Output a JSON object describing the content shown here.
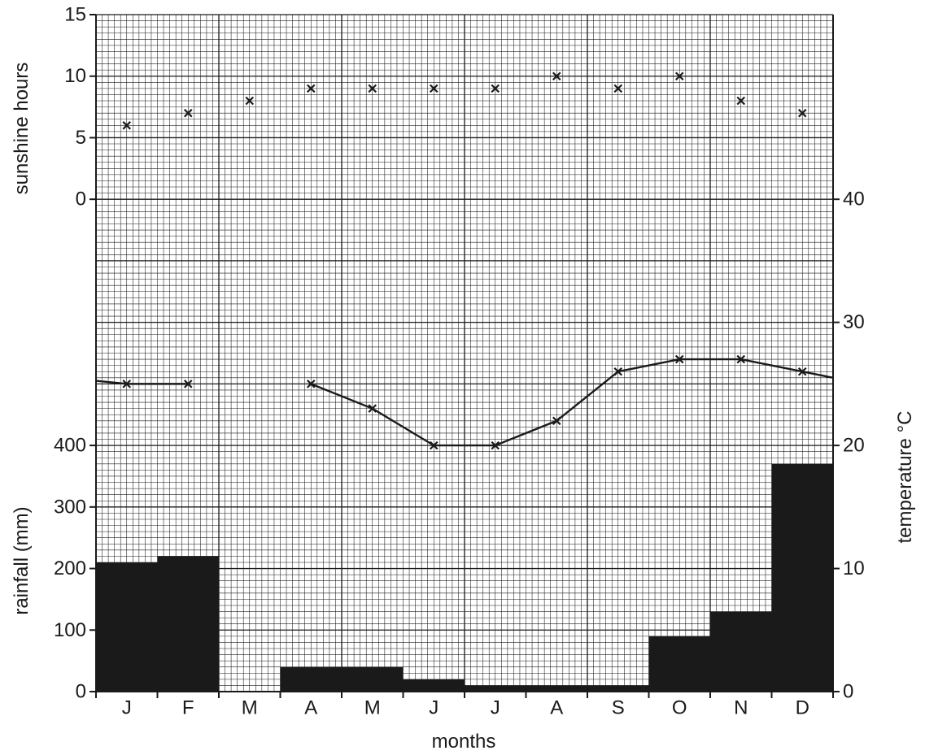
{
  "chart_data": {
    "type": "combo",
    "xlabel": "months",
    "categories": [
      "J",
      "F",
      "M",
      "A",
      "M",
      "J",
      "J",
      "A",
      "S",
      "O",
      "N",
      "D"
    ],
    "sunshine": {
      "ylabel": "sunshine hours",
      "ylim": [
        0,
        15
      ],
      "ticks": [
        "0",
        "5",
        "10",
        "15"
      ],
      "values": [
        6,
        7,
        8,
        9,
        9,
        9,
        9,
        10,
        9,
        10,
        8,
        7
      ]
    },
    "temperature": {
      "ylabel": "temperature °C",
      "ylim": [
        0,
        40
      ],
      "ticks": [
        "0",
        "10",
        "20",
        "30",
        "40"
      ],
      "values": [
        25,
        25,
        null,
        25,
        23,
        20,
        20,
        22,
        26,
        27,
        27,
        26
      ]
    },
    "rainfall": {
      "ylabel": "rainfall (mm)",
      "ylim": [
        0,
        400
      ],
      "ticks": [
        "0",
        "100",
        "200",
        "300",
        "400"
      ],
      "values": [
        210,
        220,
        0,
        40,
        40,
        20,
        10,
        10,
        10,
        90,
        130,
        370
      ]
    },
    "grid": true
  }
}
